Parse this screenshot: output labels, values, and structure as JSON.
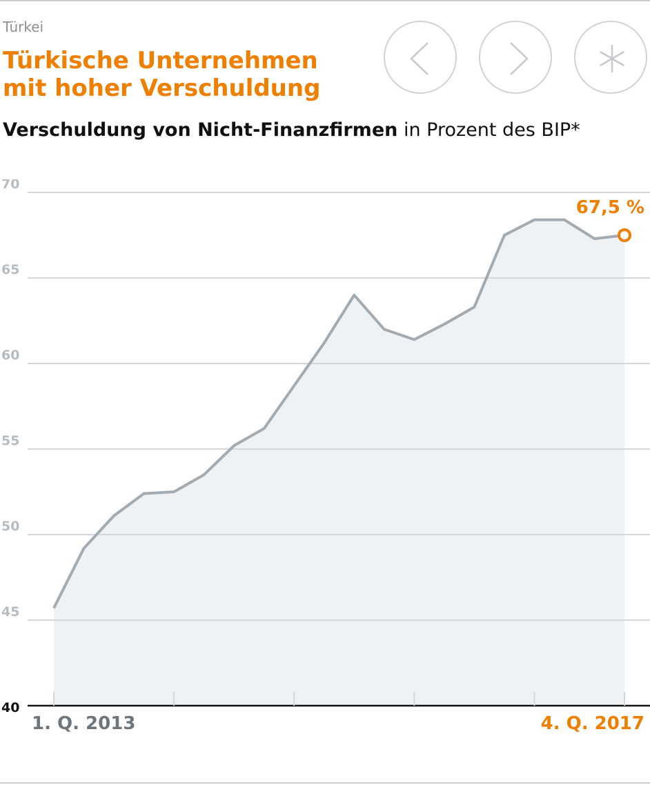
{
  "header": {
    "kicker": "Türkei",
    "title_line1": "Türkische Unternehmen",
    "title_line2": "mit hoher Verschuldung"
  },
  "nav": {
    "prev_icon": "chevron-left-icon",
    "next_icon": "chevron-right-icon",
    "menu_icon": "asterisk-icon"
  },
  "subtitle": {
    "bold": "Verschuldung von Nicht-Finanzfirmen",
    "regular": " in Prozent des BIP*"
  },
  "colors": {
    "accent": "#ee7f00",
    "line": "#a2abb2",
    "area": "#eef2f5",
    "grid": "#d4d8dc",
    "tick_label": "#b6bbbf",
    "axis": "#111111"
  },
  "chart_data": {
    "type": "area",
    "title": "Verschuldung von Nicht-Finanzfirmen",
    "ylabel": "in Prozent des BIP*",
    "ylim": [
      40,
      70
    ],
    "yticks": [
      40,
      45,
      50,
      55,
      60,
      65,
      70
    ],
    "x_start_label": "1. Q. 2013",
    "x_end_label": "4. Q. 2017",
    "end_annotation": "67,5 %",
    "grid": true,
    "series": [
      {
        "values": [
          45.7,
          49.2,
          51.1,
          52.4,
          52.5,
          53.5,
          55.2,
          56.2,
          58.7,
          61.2,
          64.0,
          62.0,
          61.4,
          62.3,
          63.3,
          67.5,
          68.4,
          68.4,
          67.3,
          67.5
        ]
      }
    ]
  }
}
